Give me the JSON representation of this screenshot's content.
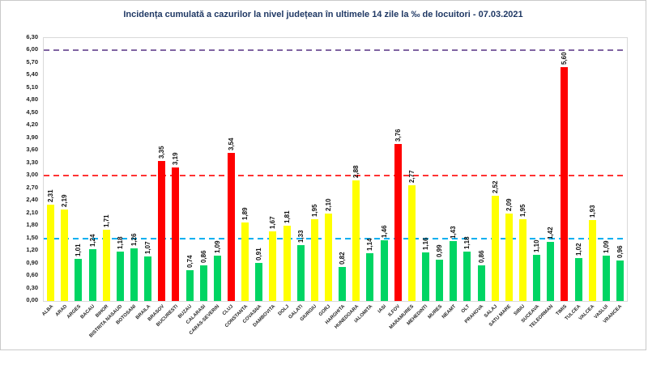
{
  "chart_data": {
    "type": "bar",
    "title": "Incidența cumulată a cazurilor la nivel județean în ultimele 14 zile la ‰ de locuitori - 07.03.2021",
    "xlabel": "",
    "ylabel": "",
    "ylim": [
      0,
      6.3
    ],
    "ytick_step": 0.3,
    "ytick_labels": [
      "0,00",
      "0,30",
      "0,60",
      "0,90",
      "1,20",
      "1,50",
      "1,80",
      "2,10",
      "2,40",
      "2,70",
      "3,00",
      "3,30",
      "3,60",
      "3,90",
      "4,20",
      "4,50",
      "4,80",
      "5,10",
      "5,40",
      "5,70",
      "6,00",
      "6,30"
    ],
    "decimal_separator": ",",
    "grid": false,
    "legend": "none",
    "categories": [
      "ALBA",
      "ARAD",
      "ARGES",
      "BACAU",
      "BIHOR",
      "BISTRITA NASAUD",
      "BOTOSANI",
      "BRAILA",
      "BRASOV",
      "BUCURESTI",
      "BUZAU",
      "CALARASI",
      "CARAS-SEVERIN",
      "CLUJ",
      "CONSTANTA",
      "COVASNA",
      "DAMBOVITA",
      "DOLJ",
      "GALATI",
      "GIURGIU",
      "GORJ",
      "HARGHITA",
      "HUNEDOARA",
      "IALOMITA",
      "IASI",
      "ILFOV",
      "MARAMURES",
      "MEHEDINTI",
      "MURES",
      "NEAMT",
      "OLT",
      "PRAHOVA",
      "SALAJ",
      "SATU MARE",
      "SIBIU",
      "SUCEAVA",
      "TELEORMAN",
      "TIMIS",
      "TULCEA",
      "VALCEA",
      "VASLUI",
      "VRANCEA"
    ],
    "values": [
      2.31,
      2.19,
      1.01,
      1.24,
      1.71,
      1.18,
      1.26,
      1.07,
      3.35,
      3.19,
      0.74,
      0.86,
      1.09,
      3.54,
      1.89,
      0.91,
      1.67,
      1.81,
      1.33,
      1.95,
      2.1,
      0.82,
      2.88,
      1.14,
      1.46,
      3.76,
      2.77,
      1.16,
      0.99,
      1.43,
      1.18,
      0.86,
      2.52,
      2.09,
      1.95,
      1.1,
      1.42,
      5.6,
      1.02,
      1.93,
      1.09,
      0.96
    ],
    "bar_colors": {
      "low": "#00D563",
      "mid": "#FFFF00",
      "high": "#FF0000"
    },
    "color_rule": "green if value < 1.5, yellow if 1.5 <= value < 3.0, red if value >= 3.0",
    "thresholds": [
      {
        "value": 1.5,
        "color": "#00B0F0",
        "style": "dashed"
      },
      {
        "value": 3.0,
        "color": "#FF3333",
        "style": "dashed"
      },
      {
        "value": 6.0,
        "color": "#8064A2",
        "style": "dashed"
      }
    ],
    "title_color": "#1F3864"
  }
}
